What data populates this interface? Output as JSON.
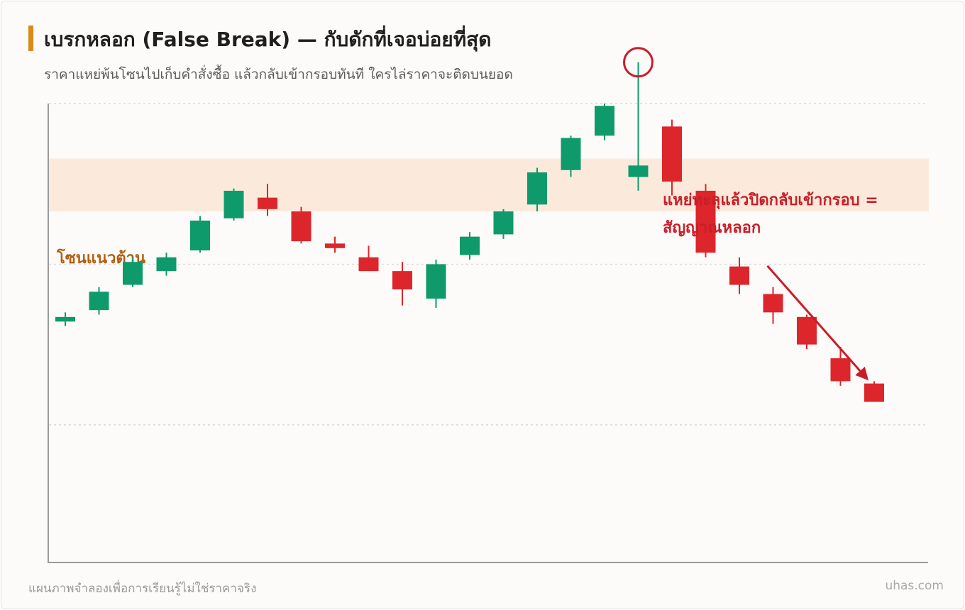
{
  "header": {
    "title": "เบรกหลอก (False Break) — กับดักที่เจอบ่อยที่สุด",
    "subtitle": "ราคาแหย่พ้นโซนไปเก็บคำสั่งซื้อ แล้วกลับเข้ากรอบทันที ใครไล่ราคาจะติดบนยอด"
  },
  "footer": {
    "note": "แผนภาพจำลองเพื่อการเรียนรู้ไม่ใช่ราคาจริง",
    "brand": "uhas.com"
  },
  "colors": {
    "up": "#0f9a6c",
    "down": "#dc262c",
    "zone_fill": "#fbeadb",
    "zone_label": "#b45e10",
    "annotation": "#c81e28",
    "grid": "#d6d3ce",
    "axis": "#9a9a9a",
    "accent": "#d98a1a"
  },
  "chart_data": {
    "type": "candlestick",
    "ylim": [
      0,
      100
    ],
    "grid": "horizontal dashed",
    "gridlines": [
      30,
      65,
      100
    ],
    "zone": {
      "label": "โซนแนวต้าน",
      "low": 76.5,
      "high": 88
    },
    "annotation": {
      "lines": [
        "แหย่ทะลุแล้วปิดกลับเข้ากรอบ =",
        "สัญญาณหลอก"
      ],
      "target_index": 17
    },
    "trend_arrow": {
      "from_index": 21,
      "to_index": 24
    },
    "candles": [
      {
        "o": 52.5,
        "h": 54.5,
        "l": 51.5,
        "c": 53.5
      },
      {
        "o": 55,
        "h": 60,
        "l": 54,
        "c": 59
      },
      {
        "o": 60.5,
        "h": 66.5,
        "l": 60,
        "c": 65.5
      },
      {
        "o": 63.5,
        "h": 67.5,
        "l": 62.5,
        "c": 66.5
      },
      {
        "o": 68,
        "h": 75.5,
        "l": 67.5,
        "c": 74.5
      },
      {
        "o": 75,
        "h": 81.5,
        "l": 74.5,
        "c": 81
      },
      {
        "o": 79.5,
        "h": 82.5,
        "l": 75.5,
        "c": 77
      },
      {
        "o": 76.5,
        "h": 77.5,
        "l": 69.5,
        "c": 70
      },
      {
        "o": 69.5,
        "h": 71,
        "l": 67.5,
        "c": 68.5
      },
      {
        "o": 66.5,
        "h": 69,
        "l": 64,
        "c": 63.5
      },
      {
        "o": 63.5,
        "h": 65.5,
        "l": 56,
        "c": 59.5
      },
      {
        "o": 57.5,
        "h": 66,
        "l": 55.5,
        "c": 65
      },
      {
        "o": 67,
        "h": 72,
        "l": 66,
        "c": 71
      },
      {
        "o": 71.5,
        "h": 77,
        "l": 70.5,
        "c": 76.5
      },
      {
        "o": 78,
        "h": 86,
        "l": 76.5,
        "c": 85
      },
      {
        "o": 85.5,
        "h": 93,
        "l": 84,
        "c": 92.5
      },
      {
        "o": 93,
        "h": 100,
        "l": 92,
        "c": 99.5
      },
      {
        "o": 84,
        "h": 109,
        "l": 81,
        "c": 86.5
      },
      {
        "o": 95,
        "h": 96.5,
        "l": 80,
        "c": 83
      },
      {
        "o": 81,
        "h": 82.5,
        "l": 66.5,
        "c": 67.5
      },
      {
        "o": 64.5,
        "h": 66.5,
        "l": 58.5,
        "c": 60.5
      },
      {
        "o": 58.5,
        "h": 60,
        "l": 52,
        "c": 54.5
      },
      {
        "o": 53.5,
        "h": 54,
        "l": 46.5,
        "c": 47.5
      },
      {
        "o": 44.5,
        "h": 47,
        "l": 38.5,
        "c": 39.5
      },
      {
        "o": 39,
        "h": 39.5,
        "l": 35,
        "c": 35
      }
    ]
  }
}
